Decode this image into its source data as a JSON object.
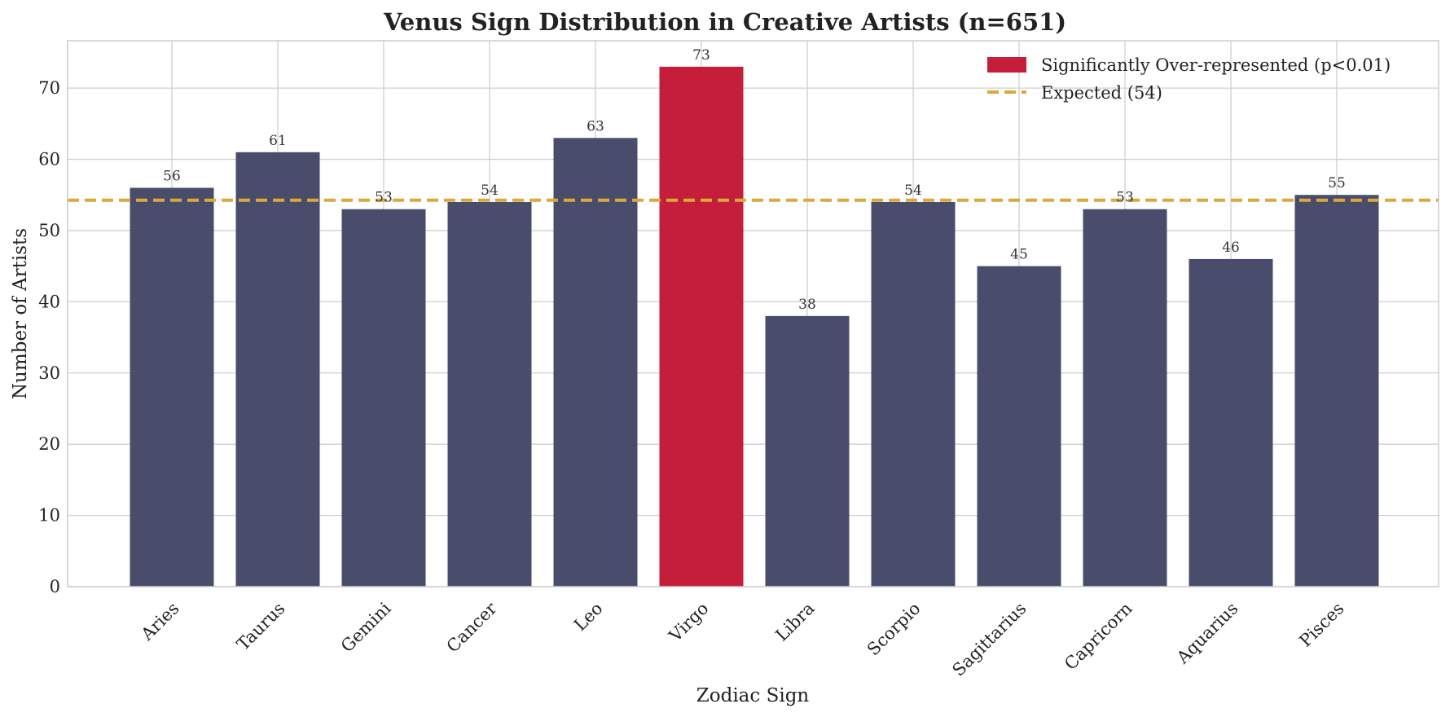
{
  "chart_data": {
    "type": "bar",
    "title": "Venus Sign Distribution in Creative Artists (n=651)",
    "xlabel": "Zodiac Sign",
    "ylabel": "Number of Artists",
    "categories": [
      "Aries",
      "Taurus",
      "Gemini",
      "Cancer",
      "Leo",
      "Virgo",
      "Libra",
      "Scorpio",
      "Sagittarius",
      "Capricorn",
      "Aquarius",
      "Pisces"
    ],
    "values": [
      56,
      61,
      53,
      54,
      63,
      73,
      38,
      54,
      45,
      53,
      46,
      55
    ],
    "highlighted": [
      "Virgo"
    ],
    "expected_value": 54.25,
    "ylim": [
      0,
      76.65
    ],
    "yticks": [
      0,
      10,
      20,
      30,
      40,
      50,
      60,
      70
    ],
    "grid": true,
    "legend_position": "top-right",
    "legend": [
      {
        "label": "Significantly Over-represented (p<0.01)",
        "kind": "patch"
      },
      {
        "label": "Expected (54)",
        "kind": "dashed-line"
      }
    ],
    "colors": {
      "bar": "#4a4c6b",
      "highlight": "#c41e3a",
      "expected_line": "#daa93b",
      "grid": "#cfcfcf",
      "frame": "#cccccc"
    }
  }
}
